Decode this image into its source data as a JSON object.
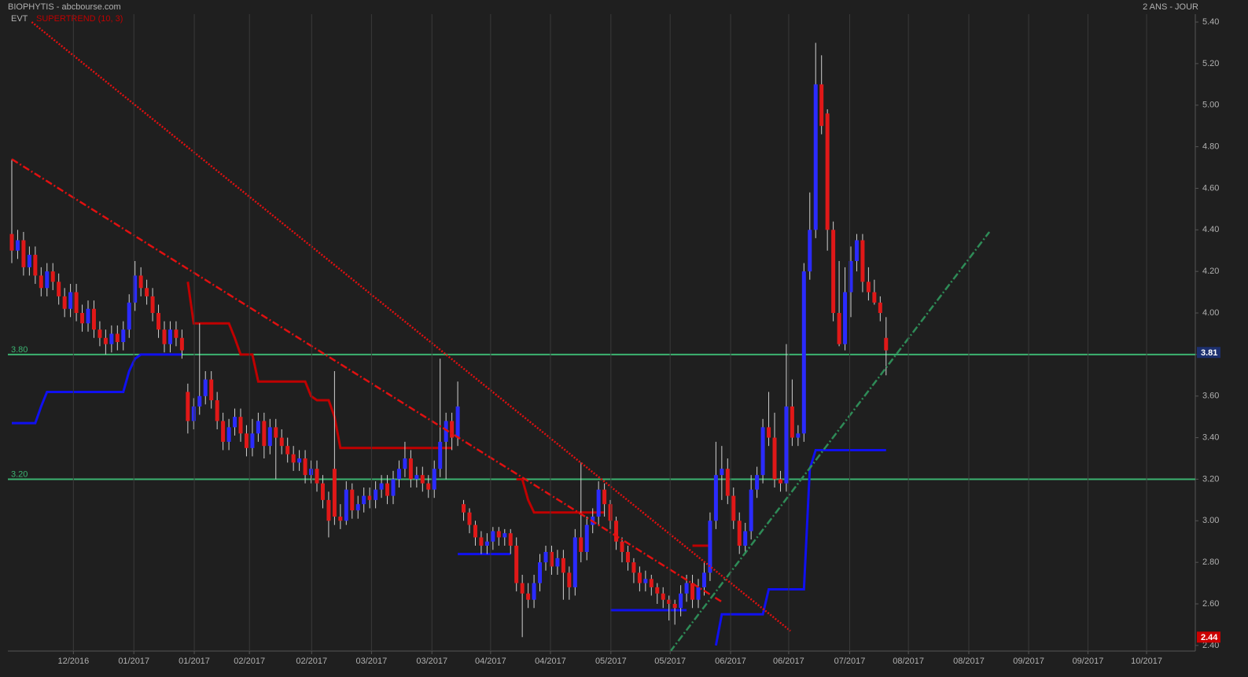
{
  "chart_data": {
    "type": "candlestick",
    "title": "BIOPHYTIS - abcbourse.com",
    "subtitle": "2 ANS - JOUR",
    "legend_label": "EVT",
    "up_color": "#2b2bff",
    "down_color": "#e01818",
    "background": "#1f1f1f",
    "grid": "x",
    "ylim": [
      2.373,
      5.438
    ],
    "yticks": [
      {
        "value": 2.4,
        "label": "2.40"
      },
      {
        "value": 2.6,
        "label": "2.60"
      },
      {
        "value": 2.8,
        "label": "2.80"
      },
      {
        "value": 3.0,
        "label": "3.00"
      },
      {
        "value": 3.2,
        "label": "3.20"
      },
      {
        "value": 3.4,
        "label": "3.40"
      },
      {
        "value": 3.6,
        "label": "3.60"
      },
      {
        "value": 3.8,
        "label": "3.80"
      },
      {
        "value": 4.0,
        "label": "4.00"
      },
      {
        "value": 4.2,
        "label": "4.20"
      },
      {
        "value": 4.4,
        "label": "4.40"
      },
      {
        "value": 4.6,
        "label": "4.60"
      },
      {
        "value": 4.8,
        "label": "4.80"
      },
      {
        "value": 5.0,
        "label": "5.00"
      },
      {
        "value": 5.2,
        "label": "5.20"
      },
      {
        "value": 5.4,
        "label": "5.40"
      }
    ],
    "xlim": [
      -0.67,
      201.7
    ],
    "xticks": [
      {
        "value": 10.5,
        "label": "12/2016"
      },
      {
        "value": 20.8,
        "label": "01/2017"
      },
      {
        "value": 31.1,
        "label": "01/2017"
      },
      {
        "value": 40.5,
        "label": "02/2017"
      },
      {
        "value": 51.1,
        "label": "02/2017"
      },
      {
        "value": 61.3,
        "label": "03/2017"
      },
      {
        "value": 71.6,
        "label": "03/2017"
      },
      {
        "value": 81.6,
        "label": "04/2017"
      },
      {
        "value": 91.8,
        "label": "04/2017"
      },
      {
        "value": 102.1,
        "label": "05/2017"
      },
      {
        "value": 112.2,
        "label": "05/2017"
      },
      {
        "value": 122.5,
        "label": "06/2017"
      },
      {
        "value": 132.4,
        "label": "06/2017"
      },
      {
        "value": 142.8,
        "label": "07/2017"
      },
      {
        "value": 152.8,
        "label": "08/2017"
      },
      {
        "value": 163.1,
        "label": "08/2017"
      },
      {
        "value": 173.3,
        "label": "09/2017"
      },
      {
        "value": 183.4,
        "label": "09/2017"
      },
      {
        "value": 193.4,
        "label": "10/2017"
      }
    ],
    "candles": [
      [
        4.38,
        4.74,
        4.24,
        4.3
      ],
      [
        4.3,
        4.4,
        4.26,
        4.35
      ],
      [
        4.35,
        4.39,
        4.18,
        4.22
      ],
      [
        4.22,
        4.32,
        4.18,
        4.28
      ],
      [
        4.28,
        4.32,
        4.14,
        4.18
      ],
      [
        4.18,
        4.22,
        4.08,
        4.12
      ],
      [
        4.12,
        4.24,
        4.08,
        4.2
      ],
      [
        4.2,
        4.24,
        4.11,
        4.15
      ],
      [
        4.15,
        4.19,
        4.04,
        4.08
      ],
      [
        4.08,
        4.12,
        3.98,
        4.02
      ],
      [
        4.02,
        4.14,
        3.98,
        4.1
      ],
      [
        4.1,
        4.14,
        3.96,
        4.0
      ],
      [
        4.0,
        4.04,
        3.91,
        3.95
      ],
      [
        3.95,
        4.06,
        3.91,
        4.02
      ],
      [
        4.02,
        4.06,
        3.88,
        3.92
      ],
      [
        3.92,
        3.96,
        3.84,
        3.88
      ],
      [
        3.88,
        3.92,
        3.8,
        3.85
      ],
      [
        3.85,
        3.94,
        3.81,
        3.9
      ],
      [
        3.9,
        3.94,
        3.82,
        3.86
      ],
      [
        3.86,
        3.96,
        3.82,
        3.92
      ],
      [
        3.92,
        4.09,
        3.88,
        4.05
      ],
      [
        4.05,
        4.25,
        4.01,
        4.18
      ],
      [
        4.18,
        4.22,
        4.08,
        4.12
      ],
      [
        4.12,
        4.16,
        4.04,
        4.08
      ],
      [
        4.08,
        4.12,
        3.96,
        4.0
      ],
      [
        4.0,
        4.04,
        3.88,
        3.92
      ],
      [
        3.92,
        3.96,
        3.81,
        3.85
      ],
      [
        3.85,
        3.96,
        3.81,
        3.92
      ],
      [
        3.92,
        3.96,
        3.84,
        3.88
      ],
      [
        3.88,
        3.92,
        3.78,
        3.82
      ],
      [
        3.62,
        3.66,
        3.42,
        3.48
      ],
      [
        3.48,
        3.59,
        3.44,
        3.55
      ],
      [
        3.55,
        3.95,
        3.51,
        3.6
      ],
      [
        3.6,
        3.72,
        3.56,
        3.68
      ],
      [
        3.68,
        3.72,
        3.54,
        3.58
      ],
      [
        3.58,
        3.62,
        3.44,
        3.48
      ],
      [
        3.48,
        3.52,
        3.34,
        3.38
      ],
      [
        3.38,
        3.49,
        3.34,
        3.45
      ],
      [
        3.45,
        3.54,
        3.41,
        3.5
      ],
      [
        3.5,
        3.54,
        3.38,
        3.42
      ],
      [
        3.42,
        3.46,
        3.31,
        3.35
      ],
      [
        3.35,
        3.49,
        3.31,
        3.42
      ],
      [
        3.42,
        3.52,
        3.38,
        3.48
      ],
      [
        3.48,
        3.52,
        3.3,
        3.36
      ],
      [
        3.36,
        3.49,
        3.32,
        3.45
      ],
      [
        3.45,
        3.49,
        3.2,
        3.4
      ],
      [
        3.4,
        3.44,
        3.32,
        3.36
      ],
      [
        3.36,
        3.4,
        3.28,
        3.32
      ],
      [
        3.32,
        3.36,
        3.24,
        3.28
      ],
      [
        3.28,
        3.34,
        3.24,
        3.3
      ],
      [
        3.3,
        3.34,
        3.18,
        3.22
      ],
      [
        3.22,
        3.29,
        3.18,
        3.25
      ],
      [
        3.25,
        3.29,
        3.14,
        3.18
      ],
      [
        3.18,
        3.22,
        3.06,
        3.1
      ],
      [
        3.1,
        3.14,
        2.92,
        3.0
      ],
      [
        3.25,
        3.72,
        2.98,
        3.02
      ],
      [
        3.02,
        3.08,
        2.96,
        3.0
      ],
      [
        3.0,
        3.19,
        2.98,
        3.15
      ],
      [
        3.15,
        3.18,
        3.01,
        3.05
      ],
      [
        3.05,
        3.12,
        3.01,
        3.08
      ],
      [
        3.08,
        3.16,
        3.04,
        3.12
      ],
      [
        3.12,
        3.16,
        3.06,
        3.1
      ],
      [
        3.1,
        3.19,
        3.06,
        3.15
      ],
      [
        3.15,
        3.22,
        3.11,
        3.18
      ],
      [
        3.18,
        3.22,
        3.08,
        3.12
      ],
      [
        3.12,
        3.24,
        3.08,
        3.2
      ],
      [
        3.2,
        3.29,
        3.16,
        3.25
      ],
      [
        3.25,
        3.38,
        3.21,
        3.3
      ],
      [
        3.3,
        3.34,
        3.16,
        3.2
      ],
      [
        3.2,
        3.26,
        3.16,
        3.22
      ],
      [
        3.22,
        3.26,
        3.14,
        3.18
      ],
      [
        3.18,
        3.22,
        3.11,
        3.15
      ],
      [
        3.15,
        3.29,
        3.11,
        3.25
      ],
      [
        3.25,
        3.78,
        3.21,
        3.38
      ],
      [
        3.38,
        3.52,
        3.2,
        3.48
      ],
      [
        3.48,
        3.52,
        3.34,
        3.4
      ],
      [
        3.4,
        3.67,
        3.36,
        3.55
      ],
      [
        3.08,
        3.1,
        3.0,
        3.04
      ],
      [
        3.04,
        3.06,
        2.94,
        2.98
      ],
      [
        2.98,
        3.0,
        2.88,
        2.92
      ],
      [
        2.92,
        2.95,
        2.84,
        2.88
      ],
      [
        2.88,
        2.94,
        2.84,
        2.9
      ],
      [
        2.9,
        2.97,
        2.86,
        2.95
      ],
      [
        2.95,
        2.97,
        2.88,
        2.92
      ],
      [
        2.92,
        2.96,
        2.88,
        2.94
      ],
      [
        2.94,
        2.96,
        2.84,
        2.88
      ],
      [
        2.88,
        2.92,
        2.66,
        2.7
      ],
      [
        2.7,
        2.74,
        2.44,
        2.65
      ],
      [
        2.65,
        2.7,
        2.58,
        2.62
      ],
      [
        2.62,
        2.74,
        2.58,
        2.7
      ],
      [
        2.7,
        2.84,
        2.66,
        2.8
      ],
      [
        2.8,
        2.88,
        2.76,
        2.85
      ],
      [
        2.85,
        2.88,
        2.74,
        2.78
      ],
      [
        2.78,
        2.86,
        2.74,
        2.82
      ],
      [
        2.82,
        2.86,
        2.62,
        2.75
      ],
      [
        2.75,
        2.78,
        2.62,
        2.68
      ],
      [
        2.68,
        2.96,
        2.64,
        2.92
      ],
      [
        2.92,
        3.28,
        2.8,
        2.85
      ],
      [
        2.85,
        3.02,
        2.81,
        2.98
      ],
      [
        2.98,
        3.06,
        2.94,
        3.02
      ],
      [
        3.02,
        3.19,
        2.98,
        3.15
      ],
      [
        3.15,
        3.18,
        3.02,
        3.08
      ],
      [
        3.08,
        3.1,
        2.96,
        3.0
      ],
      [
        3.0,
        3.02,
        2.86,
        2.9
      ],
      [
        2.9,
        2.92,
        2.8,
        2.85
      ],
      [
        2.85,
        2.88,
        2.76,
        2.8
      ],
      [
        2.8,
        2.82,
        2.7,
        2.75
      ],
      [
        2.75,
        2.78,
        2.66,
        2.7
      ],
      [
        2.7,
        2.76,
        2.66,
        2.72
      ],
      [
        2.72,
        2.74,
        2.64,
        2.68
      ],
      [
        2.68,
        2.7,
        2.6,
        2.65
      ],
      [
        2.65,
        2.68,
        2.58,
        2.62
      ],
      [
        2.62,
        2.64,
        2.52,
        2.6
      ],
      [
        2.6,
        2.62,
        2.5,
        2.58
      ],
      [
        2.58,
        2.69,
        2.54,
        2.65
      ],
      [
        2.65,
        2.74,
        2.61,
        2.7
      ],
      [
        2.7,
        2.74,
        2.58,
        2.62
      ],
      [
        2.62,
        2.72,
        2.58,
        2.68
      ],
      [
        2.68,
        2.8,
        2.64,
        2.75
      ],
      [
        2.75,
        3.04,
        2.71,
        3.0
      ],
      [
        3.0,
        3.38,
        2.96,
        3.22
      ],
      [
        3.22,
        3.36,
        3.1,
        3.25
      ],
      [
        3.25,
        3.3,
        3.08,
        3.12
      ],
      [
        3.12,
        3.16,
        2.96,
        3.0
      ],
      [
        3.0,
        3.04,
        2.84,
        2.88
      ],
      [
        2.88,
        2.99,
        2.84,
        2.95
      ],
      [
        2.95,
        3.22,
        2.91,
        3.15
      ],
      [
        3.15,
        3.26,
        3.11,
        3.22
      ],
      [
        3.22,
        3.49,
        3.18,
        3.45
      ],
      [
        3.45,
        3.62,
        3.36,
        3.4
      ],
      [
        3.4,
        3.52,
        3.16,
        3.2
      ],
      [
        3.2,
        3.24,
        3.14,
        3.18
      ],
      [
        3.18,
        3.85,
        3.14,
        3.55
      ],
      [
        3.55,
        3.68,
        3.36,
        3.4
      ],
      [
        3.4,
        3.46,
        3.36,
        3.42
      ],
      [
        3.42,
        4.24,
        3.38,
        4.2
      ],
      [
        4.2,
        4.58,
        4.16,
        4.4
      ],
      [
        4.4,
        5.3,
        4.36,
        5.1
      ],
      [
        5.1,
        5.24,
        4.86,
        4.9
      ],
      [
        4.96,
        4.98,
        4.3,
        4.4
      ],
      [
        4.4,
        4.44,
        3.96,
        4.0
      ],
      [
        4.0,
        4.25,
        3.84,
        3.85
      ],
      [
        3.85,
        4.22,
        3.82,
        4.1
      ],
      [
        4.1,
        4.32,
        3.98,
        4.25
      ],
      [
        4.25,
        4.38,
        4.2,
        4.35
      ],
      [
        4.35,
        4.38,
        4.1,
        4.15
      ],
      [
        4.15,
        4.22,
        4.06,
        4.1
      ],
      [
        4.1,
        4.16,
        4.04,
        4.05
      ],
      [
        4.05,
        4.08,
        3.96,
        4.0
      ],
      [
        3.88,
        3.98,
        3.7,
        3.82
      ]
    ],
    "supertrend": {
      "name": "SUPERTREND (10, 3)",
      "resistance_color": "#c00000",
      "support_color": "#1010f0",
      "resistance": [
        null,
        null,
        null,
        null,
        null,
        null,
        null,
        null,
        null,
        null,
        null,
        null,
        null,
        null,
        null,
        null,
        null,
        null,
        null,
        null,
        null,
        null,
        null,
        null,
        null,
        null,
        null,
        null,
        null,
        null,
        4.15,
        3.95,
        3.95,
        3.95,
        3.95,
        3.95,
        3.95,
        3.95,
        3.88,
        3.8,
        3.8,
        3.8,
        3.67,
        3.67,
        3.67,
        3.67,
        3.67,
        3.67,
        3.67,
        3.67,
        3.67,
        3.6,
        3.58,
        3.58,
        3.58,
        3.5,
        3.35,
        3.35,
        3.35,
        3.35,
        3.35,
        3.35,
        3.35,
        3.35,
        3.35,
        3.35,
        3.35,
        3.35,
        3.35,
        3.35,
        3.35,
        3.35,
        3.35,
        3.35,
        3.35,
        3.35,
        null,
        null,
        null,
        null,
        null,
        null,
        null,
        null,
        null,
        null,
        3.2,
        3.2,
        3.1,
        3.04,
        3.04,
        3.04,
        3.04,
        3.04,
        3.04,
        3.04,
        3.04,
        3.04,
        3.04,
        3.04,
        3.04,
        3.04,
        null,
        null,
        null,
        null,
        null,
        null,
        null,
        null,
        null,
        null,
        null,
        null,
        null,
        null,
        2.88,
        2.88,
        2.88,
        2.88,
        null,
        null,
        null,
        null,
        null,
        null,
        null,
        null,
        null,
        null,
        null,
        null,
        null,
        null,
        null,
        null,
        null,
        null,
        null,
        null,
        null,
        null,
        null,
        null,
        null,
        null,
        null,
        null,
        null,
        null
      ],
      "support": [
        3.47,
        3.47,
        3.47,
        3.47,
        3.47,
        3.55,
        3.62,
        3.62,
        3.62,
        3.62,
        3.62,
        3.62,
        3.62,
        3.62,
        3.62,
        3.62,
        3.62,
        3.62,
        3.62,
        3.62,
        3.72,
        3.78,
        3.8,
        3.8,
        3.8,
        3.8,
        3.8,
        3.8,
        3.8,
        3.8,
        null,
        null,
        null,
        null,
        null,
        null,
        null,
        null,
        null,
        null,
        null,
        null,
        null,
        null,
        null,
        null,
        null,
        null,
        null,
        null,
        null,
        null,
        null,
        null,
        null,
        null,
        null,
        null,
        null,
        null,
        null,
        null,
        null,
        null,
        null,
        null,
        null,
        null,
        null,
        null,
        null,
        null,
        null,
        null,
        null,
        null,
        2.84,
        2.84,
        2.84,
        2.84,
        2.84,
        2.84,
        2.84,
        2.84,
        2.84,
        2.84,
        null,
        null,
        null,
        null,
        null,
        null,
        null,
        null,
        null,
        null,
        null,
        null,
        null,
        null,
        null,
        null,
        2.57,
        2.57,
        2.57,
        2.57,
        2.57,
        2.57,
        2.57,
        2.57,
        2.57,
        2.57,
        2.57,
        2.57,
        2.57,
        2.57,
        null,
        null,
        null,
        null,
        2.4,
        2.55,
        2.55,
        2.55,
        2.55,
        2.55,
        2.55,
        2.55,
        2.55,
        2.67,
        2.67,
        2.67,
        2.67,
        2.67,
        2.67,
        2.67,
        3.25,
        3.34,
        3.34,
        3.34,
        3.34,
        3.34,
        3.34,
        3.34,
        3.34,
        3.34,
        3.34,
        3.34,
        3.34,
        3.34
      ]
    },
    "levels": {
      "color": "#3cb371",
      "lines": [
        {
          "value": 3.8,
          "label": "3.80"
        },
        {
          "value": 3.2,
          "label": "3.20"
        }
      ]
    },
    "trendlines": [
      {
        "x": [
          3.4,
          132.7
        ],
        "y": [
          5.4,
          2.47
        ],
        "color": "#e01010",
        "style": "dotted"
      },
      {
        "x": [
          0,
          121
        ],
        "y": [
          4.74,
          2.61
        ],
        "color": "#e01010",
        "style": "dashdot"
      },
      {
        "x": [
          112.2,
          166.6
        ],
        "y": [
          2.37,
          4.39
        ],
        "color": "#2e8b57",
        "style": "dashdot"
      }
    ],
    "price_tags": [
      {
        "value": 3.81,
        "label": "3.81",
        "color": "#1c2f6e"
      },
      {
        "value": 2.44,
        "label": "2.44",
        "color": "#cc0000"
      }
    ]
  }
}
